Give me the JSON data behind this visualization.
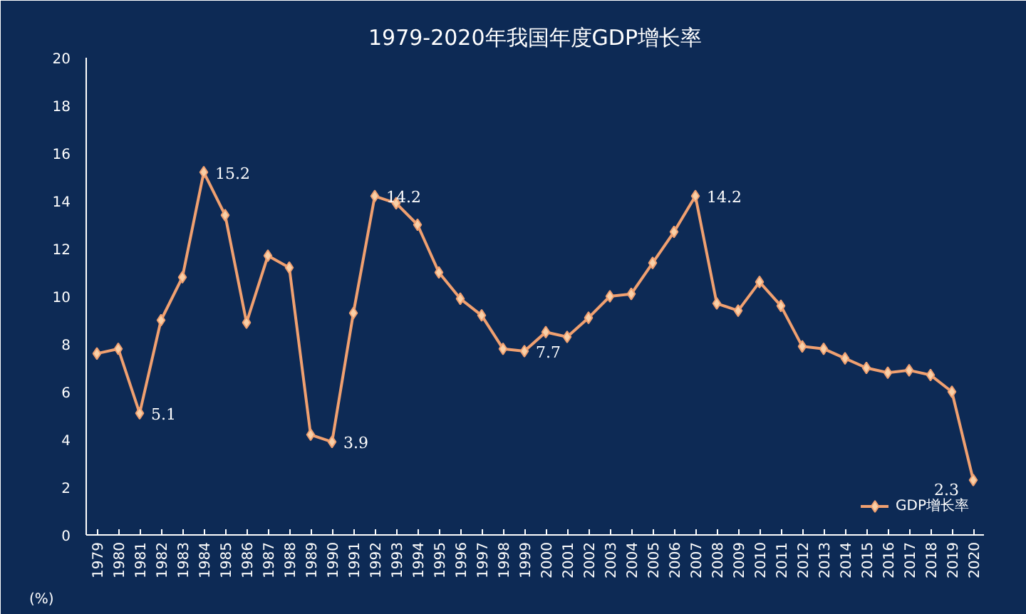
{
  "chart_data": {
    "type": "line",
    "title": "1979-2020年我国年度GDP增长率",
    "ylabel": "(%)",
    "categories": [
      "1979",
      "1980",
      "1981",
      "1982",
      "1983",
      "1984",
      "1985",
      "1986",
      "1987",
      "1988",
      "1989",
      "1990",
      "1991",
      "1992",
      "1993",
      "1994",
      "1995",
      "1996",
      "1997",
      "1998",
      "1999",
      "2000",
      "2001",
      "2002",
      "2003",
      "2004",
      "2005",
      "2006",
      "2007",
      "2008",
      "2009",
      "2010",
      "2011",
      "2012",
      "2013",
      "2014",
      "2015",
      "2016",
      "2017",
      "2018",
      "2019",
      "2020"
    ],
    "series": [
      {
        "name": "GDP增长率",
        "color": "#f0a070",
        "values": [
          7.6,
          7.8,
          5.1,
          9.0,
          10.8,
          15.2,
          13.4,
          8.9,
          11.7,
          11.2,
          4.2,
          3.9,
          9.3,
          14.2,
          13.9,
          13.0,
          11.0,
          9.9,
          9.2,
          7.8,
          7.7,
          8.5,
          8.3,
          9.1,
          10.0,
          10.1,
          11.4,
          12.7,
          14.2,
          9.7,
          9.4,
          10.6,
          9.6,
          7.9,
          7.8,
          7.4,
          7.0,
          6.8,
          6.9,
          6.7,
          6.0,
          2.3
        ],
        "value_labels": [
          null,
          null,
          "5.1",
          null,
          null,
          "15.2",
          null,
          null,
          null,
          null,
          null,
          "3.9",
          null,
          "14.2",
          null,
          null,
          null,
          null,
          null,
          null,
          "7.7",
          null,
          null,
          null,
          null,
          null,
          null,
          null,
          "14.2",
          null,
          null,
          null,
          null,
          null,
          null,
          null,
          null,
          null,
          null,
          null,
          null,
          "2.3"
        ]
      }
    ],
    "ylim": [
      0,
      20
    ],
    "yticks": [
      0,
      2,
      4,
      6,
      8,
      10,
      12,
      14,
      16,
      18,
      20
    ],
    "grid": false,
    "legend": "bottom right",
    "marker": "diamond",
    "line_style": "solid"
  }
}
